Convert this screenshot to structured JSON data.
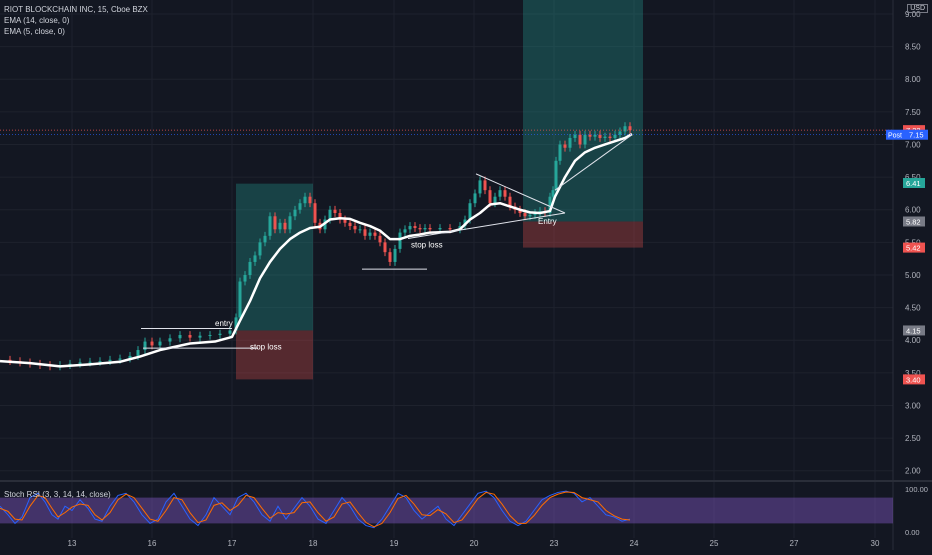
{
  "header": {
    "title": "RIOT BLOCKCHAIN INC, 15, Cboe BZX",
    "indicators": [
      "EMA (14, close, 0)",
      "EMA (5, close, 0)"
    ],
    "currency": "USD"
  },
  "chart_data": [
    {
      "type": "candlestick",
      "title": "RIOT BLOCKCHAIN INC, 15, Cboe BZX",
      "ylim": [
        1.95,
        9.0
      ],
      "y_ticks": [
        "9.00",
        "8.50",
        "8.00",
        "7.50",
        "7.00",
        "6.50",
        "6.00",
        "5.50",
        "5.00",
        "4.50",
        "4.00",
        "3.50",
        "3.00",
        "2.50",
        "2.00"
      ],
      "y_tick_values": [
        9.0,
        8.5,
        8.0,
        7.5,
        7.0,
        6.5,
        6.0,
        5.5,
        5.0,
        4.5,
        4.0,
        3.5,
        3.0,
        2.5,
        2.0
      ],
      "x_ticks": [
        "13",
        "16",
        "17",
        "18",
        "19",
        "20",
        "23",
        "24",
        "25",
        "27",
        "30"
      ],
      "price_labels": [
        {
          "text": "7.22",
          "value": 7.22,
          "color": "#ef5350"
        },
        {
          "text": "Post",
          "value": 7.15,
          "color": "#2962ff"
        },
        {
          "text": "7.15",
          "value": 7.15,
          "color": "#2962ff"
        },
        {
          "text": "6.41",
          "value": 6.41,
          "color": "#26a69a"
        },
        {
          "text": "5.82",
          "value": 5.82,
          "color": "#787b86"
        },
        {
          "text": "5.42",
          "value": 5.42,
          "color": "#ef5350"
        },
        {
          "text": "4.15",
          "value": 4.15,
          "color": "#787b86"
        },
        {
          "text": "3.40",
          "value": 3.4,
          "color": "#ef5350"
        }
      ],
      "price_series": [
        [
          0,
          3.7
        ],
        [
          10,
          3.68
        ],
        [
          20,
          3.66
        ],
        [
          30,
          3.64
        ],
        [
          40,
          3.62
        ],
        [
          50,
          3.6
        ],
        [
          60,
          3.62
        ],
        [
          70,
          3.64
        ],
        [
          80,
          3.66
        ],
        [
          90,
          3.67
        ],
        [
          100,
          3.68
        ],
        [
          110,
          3.7
        ],
        [
          120,
          3.72
        ],
        [
          130,
          3.76
        ],
        [
          138,
          3.85
        ],
        [
          145,
          3.98
        ],
        [
          152,
          3.92
        ],
        [
          160,
          3.98
        ],
        [
          170,
          4.03
        ],
        [
          180,
          4.08
        ],
        [
          190,
          4.04
        ],
        [
          200,
          4.07
        ],
        [
          210,
          4.08
        ],
        [
          220,
          4.1
        ],
        [
          230,
          4.15
        ],
        [
          236,
          4.35
        ],
        [
          240,
          4.9
        ],
        [
          245,
          5.0
        ],
        [
          250,
          5.2
        ],
        [
          255,
          5.3
        ],
        [
          260,
          5.5
        ],
        [
          265,
          5.6
        ],
        [
          270,
          5.9
        ],
        [
          275,
          5.7
        ],
        [
          280,
          5.8
        ],
        [
          285,
          5.7
        ],
        [
          290,
          5.9
        ],
        [
          295,
          6.0
        ],
        [
          300,
          6.1
        ],
        [
          305,
          6.2
        ],
        [
          310,
          6.1
        ],
        [
          315,
          5.8
        ],
        [
          320,
          5.7
        ],
        [
          325,
          5.85
        ],
        [
          330,
          6.0
        ],
        [
          335,
          5.95
        ],
        [
          340,
          5.85
        ],
        [
          345,
          5.8
        ],
        [
          350,
          5.75
        ],
        [
          355,
          5.7
        ],
        [
          360,
          5.7
        ],
        [
          365,
          5.6
        ],
        [
          370,
          5.65
        ],
        [
          375,
          5.6
        ],
        [
          380,
          5.5
        ],
        [
          385,
          5.35
        ],
        [
          390,
          5.2
        ],
        [
          395,
          5.4
        ],
        [
          400,
          5.65
        ],
        [
          405,
          5.7
        ],
        [
          410,
          5.75
        ],
        [
          415,
          5.72
        ],
        [
          420,
          5.7
        ],
        [
          425,
          5.72
        ],
        [
          430,
          5.7
        ],
        [
          440,
          5.72
        ],
        [
          450,
          5.7
        ],
        [
          460,
          5.75
        ],
        [
          465,
          5.85
        ],
        [
          470,
          6.1
        ],
        [
          475,
          6.25
        ],
        [
          480,
          6.45
        ],
        [
          485,
          6.3
        ],
        [
          490,
          6.1
        ],
        [
          495,
          6.2
        ],
        [
          500,
          6.3
        ],
        [
          505,
          6.2
        ],
        [
          510,
          6.05
        ],
        [
          515,
          6.0
        ],
        [
          520,
          5.95
        ],
        [
          525,
          5.9
        ],
        [
          530,
          5.92
        ],
        [
          535,
          5.95
        ],
        [
          540,
          5.98
        ],
        [
          545,
          5.95
        ],
        [
          550,
          6.2
        ],
        [
          553,
          6.3
        ],
        [
          556,
          6.75
        ],
        [
          560,
          7.0
        ],
        [
          565,
          6.95
        ],
        [
          570,
          7.1
        ],
        [
          575,
          7.15
        ],
        [
          580,
          7.0
        ],
        [
          585,
          7.15
        ],
        [
          590,
          7.12
        ],
        [
          595,
          7.15
        ],
        [
          600,
          7.1
        ],
        [
          605,
          7.12
        ],
        [
          610,
          7.1
        ],
        [
          615,
          7.15
        ],
        [
          620,
          7.2
        ],
        [
          625,
          7.28
        ],
        [
          630,
          7.22
        ]
      ],
      "ema14": [
        [
          0,
          3.68
        ],
        [
          30,
          3.65
        ],
        [
          60,
          3.6
        ],
        [
          90,
          3.63
        ],
        [
          120,
          3.67
        ],
        [
          140,
          3.75
        ],
        [
          160,
          3.85
        ],
        [
          190,
          3.95
        ],
        [
          215,
          3.98
        ],
        [
          232,
          4.05
        ],
        [
          240,
          4.3
        ],
        [
          250,
          4.6
        ],
        [
          260,
          4.95
        ],
        [
          270,
          5.2
        ],
        [
          280,
          5.4
        ],
        [
          290,
          5.55
        ],
        [
          300,
          5.65
        ],
        [
          310,
          5.72
        ],
        [
          320,
          5.74
        ],
        [
          330,
          5.85
        ],
        [
          340,
          5.87
        ],
        [
          350,
          5.86
        ],
        [
          360,
          5.8
        ],
        [
          370,
          5.75
        ],
        [
          380,
          5.68
        ],
        [
          390,
          5.55
        ],
        [
          400,
          5.55
        ],
        [
          410,
          5.6
        ],
        [
          420,
          5.62
        ],
        [
          430,
          5.65
        ],
        [
          450,
          5.66
        ],
        [
          460,
          5.7
        ],
        [
          470,
          5.85
        ],
        [
          480,
          5.95
        ],
        [
          490,
          6.08
        ],
        [
          500,
          6.1
        ],
        [
          510,
          6.05
        ],
        [
          520,
          6.0
        ],
        [
          530,
          5.96
        ],
        [
          540,
          5.95
        ],
        [
          550,
          5.98
        ],
        [
          555,
          6.2
        ],
        [
          565,
          6.5
        ],
        [
          575,
          6.75
        ],
        [
          585,
          6.88
        ],
        [
          595,
          6.95
        ],
        [
          605,
          7.0
        ],
        [
          615,
          7.05
        ],
        [
          625,
          7.1
        ],
        [
          632,
          7.16
        ]
      ],
      "long_positions": [
        {
          "x0": 236,
          "x1": 313,
          "entry": 4.15,
          "target": 6.4,
          "stop": 3.4
        },
        {
          "x0": 523,
          "x1": 643,
          "entry": 5.82,
          "target": 9.3,
          "stop": 5.42
        }
      ],
      "lines": [
        {
          "x1": 141,
          "y1": 4.18,
          "x2": 232,
          "y2": 4.18
        },
        {
          "x1": 143,
          "y1": 3.88,
          "x2": 258,
          "y2": 3.88
        },
        {
          "x1": 362,
          "y1": 5.09,
          "x2": 427,
          "y2": 5.09
        },
        {
          "x1": 476,
          "y1": 6.55,
          "x2": 565,
          "y2": 5.95
        },
        {
          "x1": 408,
          "y1": 5.56,
          "x2": 565,
          "y2": 5.95
        },
        {
          "x1": 555,
          "y1": 6.3,
          "x2": 632,
          "y2": 7.15
        }
      ],
      "annotations": [
        {
          "text": "entry",
          "x": 215,
          "value": 4.22
        },
        {
          "text": "stop loss",
          "x": 250,
          "value": 3.86
        },
        {
          "text": "stop loss",
          "x": 411,
          "value": 5.42
        },
        {
          "text": "Entry",
          "x": 538,
          "value": 5.78
        }
      ]
    },
    {
      "type": "line",
      "title": "Stoch RSI (3, 3, 14, 14, close)",
      "ylim": [
        0,
        100
      ],
      "y_ticks": [
        "100.00",
        "0.00"
      ],
      "y_tick_values": [
        100,
        0
      ],
      "band": [
        20,
        80
      ],
      "series_k": [
        [
          0,
          60
        ],
        [
          8,
          40
        ],
        [
          15,
          20
        ],
        [
          22,
          35
        ],
        [
          30,
          80
        ],
        [
          38,
          90
        ],
        [
          45,
          70
        ],
        [
          52,
          40
        ],
        [
          58,
          30
        ],
        [
          65,
          60
        ],
        [
          72,
          50
        ],
        [
          80,
          75
        ],
        [
          88,
          55
        ],
        [
          95,
          30
        ],
        [
          102,
          25
        ],
        [
          110,
          60
        ],
        [
          118,
          85
        ],
        [
          126,
          90
        ],
        [
          134,
          70
        ],
        [
          142,
          40
        ],
        [
          150,
          20
        ],
        [
          158,
          30
        ],
        [
          166,
          70
        ],
        [
          174,
          90
        ],
        [
          182,
          60
        ],
        [
          190,
          30
        ],
        [
          198,
          15
        ],
        [
          206,
          40
        ],
        [
          214,
          80
        ],
        [
          222,
          60
        ],
        [
          230,
          40
        ],
        [
          238,
          80
        ],
        [
          246,
          90
        ],
        [
          254,
          70
        ],
        [
          262,
          40
        ],
        [
          270,
          25
        ],
        [
          278,
          60
        ],
        [
          286,
          30
        ],
        [
          294,
          55
        ],
        [
          302,
          80
        ],
        [
          310,
          60
        ],
        [
          318,
          30
        ],
        [
          326,
          20
        ],
        [
          334,
          50
        ],
        [
          342,
          80
        ],
        [
          350,
          60
        ],
        [
          358,
          30
        ],
        [
          366,
          15
        ],
        [
          374,
          10
        ],
        [
          382,
          30
        ],
        [
          390,
          60
        ],
        [
          398,
          90
        ],
        [
          406,
          80
        ],
        [
          414,
          50
        ],
        [
          422,
          30
        ],
        [
          430,
          45
        ],
        [
          438,
          60
        ],
        [
          446,
          30
        ],
        [
          454,
          15
        ],
        [
          462,
          40
        ],
        [
          470,
          65
        ],
        [
          478,
          90
        ],
        [
          486,
          95
        ],
        [
          494,
          80
        ],
        [
          502,
          50
        ],
        [
          510,
          25
        ],
        [
          518,
          15
        ],
        [
          526,
          25
        ],
        [
          534,
          50
        ],
        [
          542,
          75
        ],
        [
          550,
          85
        ],
        [
          558,
          92
        ],
        [
          566,
          95
        ],
        [
          574,
          90
        ],
        [
          582,
          70
        ],
        [
          590,
          80
        ],
        [
          598,
          60
        ],
        [
          606,
          40
        ],
        [
          614,
          35
        ],
        [
          622,
          25
        ],
        [
          630,
          30
        ]
      ],
      "series_d": [
        [
          0,
          55
        ],
        [
          8,
          48
        ],
        [
          15,
          30
        ],
        [
          22,
          28
        ],
        [
          30,
          60
        ],
        [
          38,
          85
        ],
        [
          45,
          80
        ],
        [
          52,
          55
        ],
        [
          58,
          35
        ],
        [
          65,
          45
        ],
        [
          72,
          58
        ],
        [
          80,
          65
        ],
        [
          88,
          62
        ],
        [
          95,
          40
        ],
        [
          102,
          28
        ],
        [
          110,
          45
        ],
        [
          118,
          75
        ],
        [
          126,
          88
        ],
        [
          134,
          80
        ],
        [
          142,
          55
        ],
        [
          150,
          30
        ],
        [
          158,
          25
        ],
        [
          166,
          50
        ],
        [
          174,
          80
        ],
        [
          182,
          75
        ],
        [
          190,
          45
        ],
        [
          198,
          22
        ],
        [
          206,
          28
        ],
        [
          214,
          62
        ],
        [
          222,
          68
        ],
        [
          230,
          50
        ],
        [
          238,
          62
        ],
        [
          246,
          85
        ],
        [
          254,
          80
        ],
        [
          262,
          55
        ],
        [
          270,
          32
        ],
        [
          278,
          45
        ],
        [
          286,
          42
        ],
        [
          294,
          45
        ],
        [
          302,
          68
        ],
        [
          310,
          70
        ],
        [
          318,
          45
        ],
        [
          326,
          25
        ],
        [
          334,
          35
        ],
        [
          342,
          65
        ],
        [
          350,
          70
        ],
        [
          358,
          45
        ],
        [
          366,
          22
        ],
        [
          374,
          12
        ],
        [
          382,
          20
        ],
        [
          390,
          45
        ],
        [
          398,
          78
        ],
        [
          406,
          85
        ],
        [
          414,
          65
        ],
        [
          422,
          40
        ],
        [
          430,
          38
        ],
        [
          438,
          52
        ],
        [
          446,
          42
        ],
        [
          454,
          22
        ],
        [
          462,
          28
        ],
        [
          470,
          52
        ],
        [
          478,
          78
        ],
        [
          486,
          92
        ],
        [
          494,
          88
        ],
        [
          502,
          65
        ],
        [
          510,
          38
        ],
        [
          518,
          20
        ],
        [
          526,
          20
        ],
        [
          534,
          38
        ],
        [
          542,
          62
        ],
        [
          550,
          80
        ],
        [
          558,
          88
        ],
        [
          566,
          93
        ],
        [
          574,
          92
        ],
        [
          582,
          80
        ],
        [
          590,
          75
        ],
        [
          598,
          70
        ],
        [
          606,
          50
        ],
        [
          614,
          38
        ],
        [
          622,
          30
        ],
        [
          630,
          28
        ]
      ]
    }
  ],
  "colors": {
    "background": "#131722",
    "grid": "#1e222d",
    "up": "#26a69a",
    "down": "#ef5350",
    "ema": "#ffffff",
    "profit_zone": "rgba(38,166,154,0.30)",
    "loss_zone": "rgba(239,83,80,0.30)",
    "k_line": "#2962ff",
    "d_line": "#ff6d00",
    "rsi_band": "rgba(126,87,194,0.45)"
  }
}
